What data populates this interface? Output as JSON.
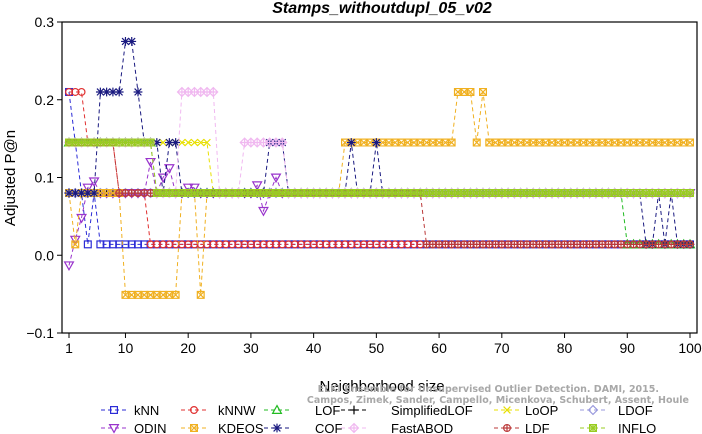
{
  "chart_data": {
    "type": "line",
    "title": "Stamps_withoutdupl_05_v02",
    "xlabel": "Neighborhood size",
    "ylabel": "Adjusted P@n",
    "xlim": [
      1,
      100
    ],
    "ylim": [
      -0.1,
      0.3
    ],
    "xticks": [
      1,
      10,
      20,
      30,
      40,
      50,
      60,
      70,
      80,
      90,
      100
    ],
    "yticks": [
      -0.1,
      0.0,
      0.1,
      0.2,
      0.3
    ],
    "ytick_labels": [
      "−0.1",
      "0.0",
      "0.1",
      "0.2",
      "0.3"
    ],
    "legend_position": "bottom",
    "credit": [
      "ELKI Ensemble for Unsupervised Outlier Detection. DAMI, 2015.",
      "Campos, Zimek, Sander, Campello, Micenkova, Schubert, Assent, Houle"
    ],
    "series": [
      {
        "name": "kNN",
        "color": "#2b2bd6",
        "marker": "square",
        "points": [
          [
            1,
            0.21
          ],
          [
            2,
            0.145
          ],
          [
            3,
            0.08
          ],
          [
            4,
            0.014
          ],
          [
            5,
            0.08
          ],
          [
            6,
            0.014
          ],
          [
            100,
            0.014
          ]
        ]
      },
      {
        "name": "kNNW",
        "color": "#e03030",
        "marker": "circle",
        "points": [
          [
            1,
            0.21
          ],
          [
            2,
            0.21
          ],
          [
            3,
            0.21
          ],
          [
            4,
            0.145
          ],
          [
            5,
            0.145
          ],
          [
            6,
            0.145
          ],
          [
            7,
            0.145
          ],
          [
            8,
            0.145
          ],
          [
            9,
            0.08
          ],
          [
            10,
            0.08
          ],
          [
            11,
            0.08
          ],
          [
            12,
            0.08
          ],
          [
            13,
            0.08
          ],
          [
            14,
            0.014
          ],
          [
            100,
            0.014
          ]
        ]
      },
      {
        "name": "LOF",
        "color": "#22bb22",
        "marker": "triangle",
        "points": [
          [
            1,
            0.145
          ],
          [
            14,
            0.145
          ],
          [
            15,
            0.08
          ],
          [
            89,
            0.08
          ],
          [
            90,
            0.014
          ],
          [
            100,
            0.014
          ]
        ]
      },
      {
        "name": "SimplifiedLOF",
        "color": "#000000",
        "marker": "plus",
        "points": [
          [
            1,
            0.08
          ],
          [
            14,
            0.08
          ],
          [
            15,
            0.08
          ],
          [
            100,
            0.08
          ]
        ]
      },
      {
        "name": "LoOP",
        "color": "#e8e000",
        "marker": "x",
        "points": [
          [
            1,
            0.145
          ],
          [
            23,
            0.145
          ],
          [
            24,
            0.08
          ],
          [
            100,
            0.08
          ]
        ]
      },
      {
        "name": "LDOF",
        "color": "#9999dd",
        "marker": "diamond",
        "points": [
          [
            1,
            0.08
          ],
          [
            100,
            0.08
          ]
        ]
      },
      {
        "name": "ODIN",
        "color": "#9933cc",
        "marker": "triangle-down",
        "points": [
          [
            1,
            -0.013
          ],
          [
            2,
            0.02
          ],
          [
            3,
            0.048
          ],
          [
            4,
            0.087
          ],
          [
            5,
            0.095
          ],
          [
            6,
            0.08
          ],
          [
            7,
            0.08
          ],
          [
            8,
            0.08
          ],
          [
            9,
            0.08
          ],
          [
            10,
            0.08
          ],
          [
            11,
            0.08
          ],
          [
            12,
            0.08
          ],
          [
            13,
            0.08
          ],
          [
            14,
            0.12
          ],
          [
            15,
            0.08
          ],
          [
            16,
            0.1
          ],
          [
            17,
            0.112
          ],
          [
            18,
            0.08
          ],
          [
            19,
            0.08
          ],
          [
            20,
            0.087
          ],
          [
            21,
            0.087
          ],
          [
            22,
            0.08
          ],
          [
            30,
            0.08
          ],
          [
            31,
            0.09
          ],
          [
            32,
            0.057
          ],
          [
            33,
            0.08
          ],
          [
            34,
            0.1
          ],
          [
            35,
            0.08
          ],
          [
            100,
            0.08
          ]
        ]
      },
      {
        "name": "KDEOS",
        "color": "#f0b020",
        "marker": "square-x",
        "points": [
          [
            1,
            0.08
          ],
          [
            2,
            0.014
          ],
          [
            3,
            0.08
          ],
          [
            9,
            0.08
          ],
          [
            10,
            -0.051
          ],
          [
            18,
            -0.051
          ],
          [
            19,
            0.08
          ],
          [
            21,
            0.08
          ],
          [
            22,
            -0.051
          ],
          [
            23,
            0.08
          ],
          [
            44,
            0.08
          ],
          [
            45,
            0.145
          ],
          [
            62,
            0.145
          ],
          [
            63,
            0.21
          ],
          [
            65,
            0.21
          ],
          [
            66,
            0.145
          ],
          [
            67,
            0.21
          ],
          [
            68,
            0.145
          ],
          [
            100,
            0.145
          ]
        ]
      },
      {
        "name": "COF",
        "color": "#1a1a80",
        "marker": "star",
        "points": [
          [
            1,
            0.08
          ],
          [
            2,
            0.08
          ],
          [
            3,
            0.08
          ],
          [
            4,
            0.08
          ],
          [
            5,
            0.08
          ],
          [
            6,
            0.21
          ],
          [
            7,
            0.21
          ],
          [
            8,
            0.21
          ],
          [
            9,
            0.21
          ],
          [
            10,
            0.275
          ],
          [
            11,
            0.275
          ],
          [
            12,
            0.21
          ],
          [
            13,
            0.145
          ],
          [
            14,
            0.145
          ],
          [
            15,
            0.145
          ],
          [
            16,
            0.08
          ],
          [
            17,
            0.145
          ],
          [
            18,
            0.145
          ],
          [
            19,
            0.08
          ],
          [
            32,
            0.08
          ],
          [
            33,
            0.145
          ],
          [
            34,
            0.145
          ],
          [
            35,
            0.145
          ],
          [
            36,
            0.08
          ],
          [
            45,
            0.08
          ],
          [
            46,
            0.145
          ],
          [
            47,
            0.08
          ],
          [
            49,
            0.08
          ],
          [
            50,
            0.145
          ],
          [
            51,
            0.08
          ],
          [
            92,
            0.08
          ],
          [
            93,
            0.014
          ],
          [
            94,
            0.014
          ],
          [
            95,
            0.08
          ],
          [
            96,
            0.014
          ],
          [
            97,
            0.08
          ],
          [
            98,
            0.014
          ],
          [
            100,
            0.014
          ]
        ]
      },
      {
        "name": "FastABOD",
        "color": "#f0b8f0",
        "marker": "diamond-plus",
        "points": [
          [
            1,
            0.145
          ],
          [
            14,
            0.145
          ],
          [
            15,
            0.08
          ],
          [
            18,
            0.08
          ],
          [
            19,
            0.21
          ],
          [
            20,
            0.21
          ],
          [
            24,
            0.21
          ],
          [
            25,
            0.08
          ],
          [
            28,
            0.08
          ],
          [
            29,
            0.145
          ],
          [
            35,
            0.145
          ],
          [
            36,
            0.08
          ],
          [
            100,
            0.08
          ]
        ]
      },
      {
        "name": "LDF",
        "color": "#bb3a3a",
        "marker": "circle-plus",
        "points": [
          [
            1,
            0.145
          ],
          [
            3,
            0.145
          ],
          [
            4,
            0.145
          ],
          [
            5,
            0.145
          ],
          [
            6,
            0.145
          ],
          [
            7,
            0.145
          ],
          [
            8,
            0.145
          ],
          [
            9,
            0.08
          ],
          [
            15,
            0.08
          ],
          [
            16,
            0.08
          ],
          [
            57,
            0.08
          ],
          [
            58,
            0.014
          ],
          [
            100,
            0.014
          ]
        ]
      },
      {
        "name": "INFLO",
        "color": "#99cc22",
        "marker": "square-star",
        "points": [
          [
            1,
            0.145
          ],
          [
            14,
            0.145
          ],
          [
            15,
            0.08
          ],
          [
            100,
            0.08
          ]
        ]
      }
    ]
  }
}
